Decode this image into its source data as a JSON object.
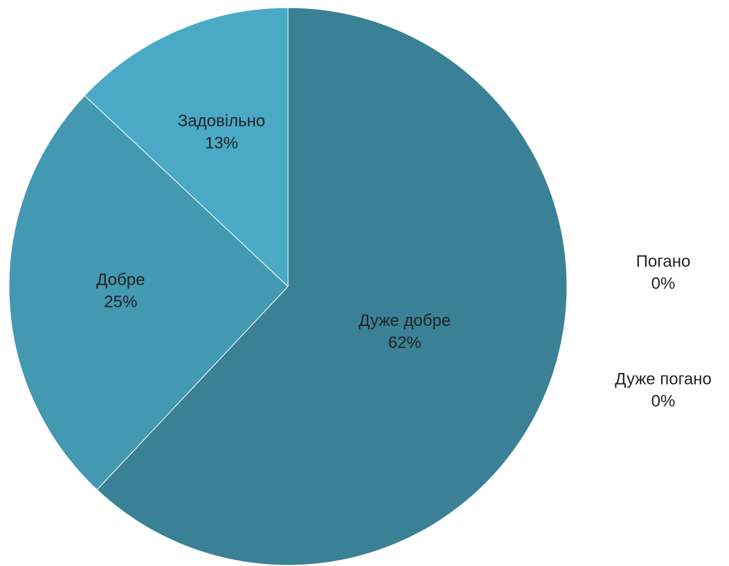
{
  "chart_data": {
    "type": "pie",
    "categories": [
      "Дуже добре",
      "Добре",
      "Задовільно",
      "Погано",
      "Дуже погано"
    ],
    "values": [
      62,
      25,
      13,
      0,
      0
    ],
    "value_labels": [
      "62%",
      "25%",
      "13%",
      "0%",
      "0%"
    ],
    "colors": [
      "#3a8196",
      "#4399b1",
      "#4aaac6",
      "#6cbcd3",
      "#8fcbdc"
    ]
  }
}
